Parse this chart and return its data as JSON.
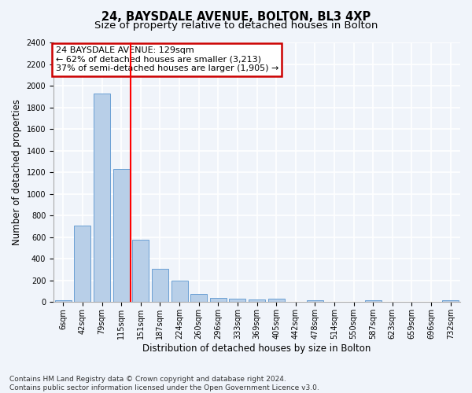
{
  "title": "24, BAYSDALE AVENUE, BOLTON, BL3 4XP",
  "subtitle": "Size of property relative to detached houses in Bolton",
  "xlabel": "Distribution of detached houses by size in Bolton",
  "ylabel": "Number of detached properties",
  "categories": [
    "6sqm",
    "42sqm",
    "79sqm",
    "115sqm",
    "151sqm",
    "187sqm",
    "224sqm",
    "260sqm",
    "296sqm",
    "333sqm",
    "369sqm",
    "405sqm",
    "442sqm",
    "478sqm",
    "514sqm",
    "550sqm",
    "587sqm",
    "623sqm",
    "659sqm",
    "696sqm",
    "732sqm"
  ],
  "values": [
    15,
    710,
    1930,
    1230,
    575,
    305,
    200,
    75,
    40,
    30,
    25,
    35,
    0,
    15,
    5,
    0,
    15,
    0,
    0,
    0,
    15
  ],
  "bar_color": "#b8cfe8",
  "bar_edgecolor": "#6a9fd4",
  "redline_x": 3.5,
  "annotation_title": "24 BAYSDALE AVENUE: 129sqm",
  "annotation_line1": "← 62% of detached houses are smaller (3,213)",
  "annotation_line2": "37% of semi-detached houses are larger (1,905) →",
  "annotation_box_color": "#ffffff",
  "annotation_box_edgecolor": "#cc0000",
  "ylim": [
    0,
    2400
  ],
  "yticks": [
    0,
    200,
    400,
    600,
    800,
    1000,
    1200,
    1400,
    1600,
    1800,
    2000,
    2200,
    2400
  ],
  "footer_line1": "Contains HM Land Registry data © Crown copyright and database right 2024.",
  "footer_line2": "Contains public sector information licensed under the Open Government Licence v3.0.",
  "bg_color": "#f0f4fa",
  "plot_bg_color": "#f0f4fa",
  "grid_color": "#ffffff",
  "title_fontsize": 10.5,
  "subtitle_fontsize": 9.5,
  "tick_fontsize": 7,
  "ylabel_fontsize": 8.5,
  "xlabel_fontsize": 8.5,
  "annotation_fontsize": 8,
  "footer_fontsize": 6.5
}
